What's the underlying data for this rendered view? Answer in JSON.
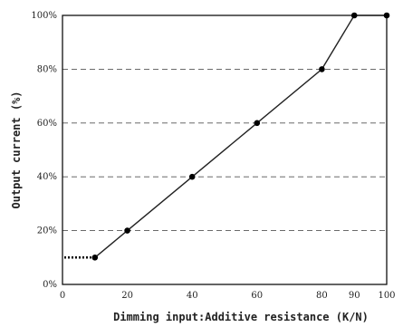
{
  "chart_data": {
    "type": "line",
    "title": "",
    "xlabel": "Dimming input:Additive resistance (K/N)",
    "ylabel": "Output current (%)",
    "xlim": [
      0,
      100
    ],
    "ylim": [
      0,
      100
    ],
    "x_ticks": [
      0,
      20,
      40,
      60,
      80,
      90,
      100
    ],
    "y_ticks": [
      "0%",
      "20%",
      "40%",
      "60%",
      "80%",
      "100%"
    ],
    "y_tick_values": [
      0,
      20,
      40,
      60,
      80,
      100
    ],
    "grid": "horizontal-dashed",
    "series": [
      {
        "x": [
          10,
          20,
          40,
          60,
          80,
          90,
          100
        ],
        "y": [
          10,
          20,
          40,
          60,
          80,
          100,
          100
        ]
      }
    ],
    "lower_segment": {
      "x": [
        0,
        10
      ],
      "y": [
        10,
        10
      ],
      "style": "dotted"
    }
  }
}
